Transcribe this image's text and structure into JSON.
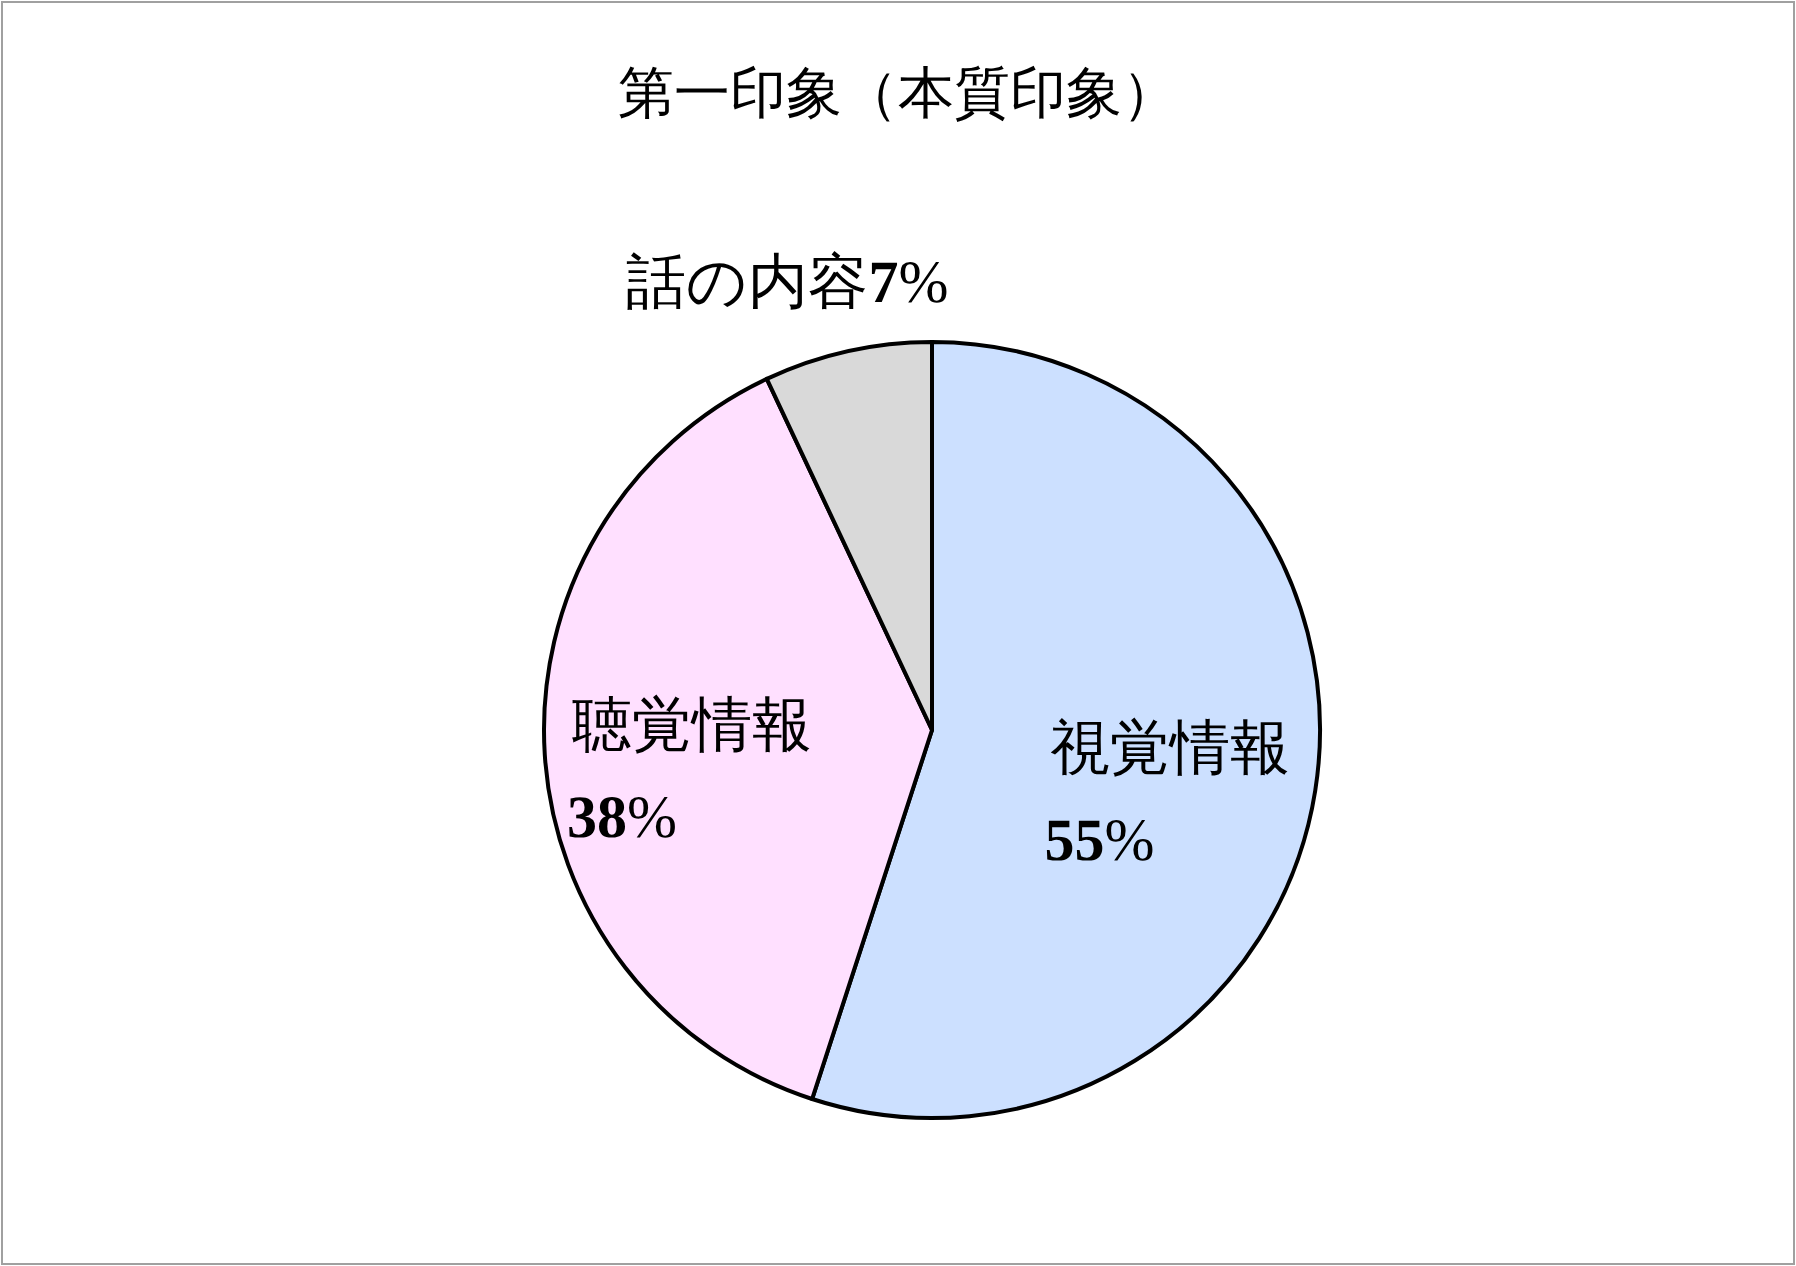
{
  "chart_data": {
    "type": "pie",
    "title": "第一印象（本質印象）",
    "categories": [
      "視覚情報",
      "聴覚情報",
      "話の内容"
    ],
    "values": [
      55,
      38,
      7
    ],
    "colors": [
      "#cce0ff",
      "#ffe0ff",
      "#d9d9d9"
    ],
    "value_labels": [
      "55%",
      "38%",
      "7%"
    ]
  }
}
